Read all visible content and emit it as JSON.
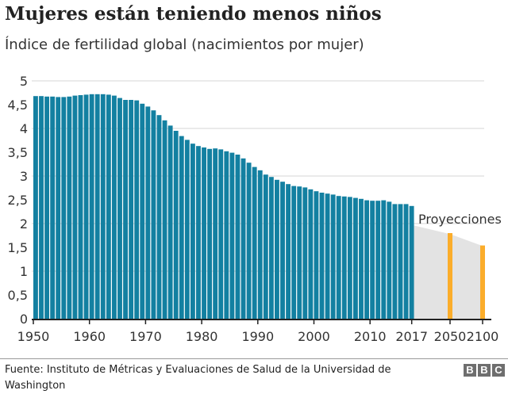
{
  "chart_data": {
    "type": "bar",
    "title": "Mujeres están teniendo menos niños",
    "subtitle": "Índice de fertilidad global (nacimientos por mujer)",
    "ylim": [
      0,
      5
    ],
    "yticks": [
      "0",
      "0,5",
      "1",
      "1,5",
      "2",
      "2,5",
      "3",
      "3,5",
      "4",
      "4,5",
      "5"
    ],
    "xticks": [
      "1950",
      "1960",
      "1970",
      "1980",
      "1990",
      "2000",
      "2010",
      "2017",
      "2050",
      "2100"
    ],
    "grid": true,
    "colors": {
      "historical": "#1380a1",
      "projection": "#fbad2b",
      "projection_area": "#e3e3e3"
    },
    "historical": {
      "start_year": 1950,
      "values": [
        4.68,
        4.68,
        4.67,
        4.67,
        4.66,
        4.66,
        4.67,
        4.69,
        4.7,
        4.71,
        4.72,
        4.72,
        4.72,
        4.71,
        4.69,
        4.64,
        4.6,
        4.6,
        4.59,
        4.52,
        4.46,
        4.38,
        4.28,
        4.17,
        4.06,
        3.95,
        3.84,
        3.76,
        3.68,
        3.63,
        3.6,
        3.57,
        3.58,
        3.56,
        3.52,
        3.49,
        3.45,
        3.37,
        3.28,
        3.19,
        3.12,
        3.03,
        2.98,
        2.92,
        2.88,
        2.83,
        2.79,
        2.78,
        2.76,
        2.72,
        2.68,
        2.65,
        2.63,
        2.61,
        2.58,
        2.57,
        2.56,
        2.54,
        2.52,
        2.49,
        2.48,
        2.48,
        2.49,
        2.46,
        2.41,
        2.41,
        2.41,
        2.37
      ]
    },
    "projections": {
      "label": "Proyecciones",
      "years": [
        2050,
        2100
      ],
      "values": [
        1.8,
        1.54
      ],
      "area": [
        [
          2017,
          1.98
        ],
        [
          2050,
          1.78
        ],
        [
          2100,
          1.53
        ]
      ]
    }
  },
  "footer": {
    "source": "Fuente: Instituto de Métricas y Evaluaciones de Salud de la Universidad de Washington",
    "logo": [
      "B",
      "B",
      "C"
    ]
  }
}
